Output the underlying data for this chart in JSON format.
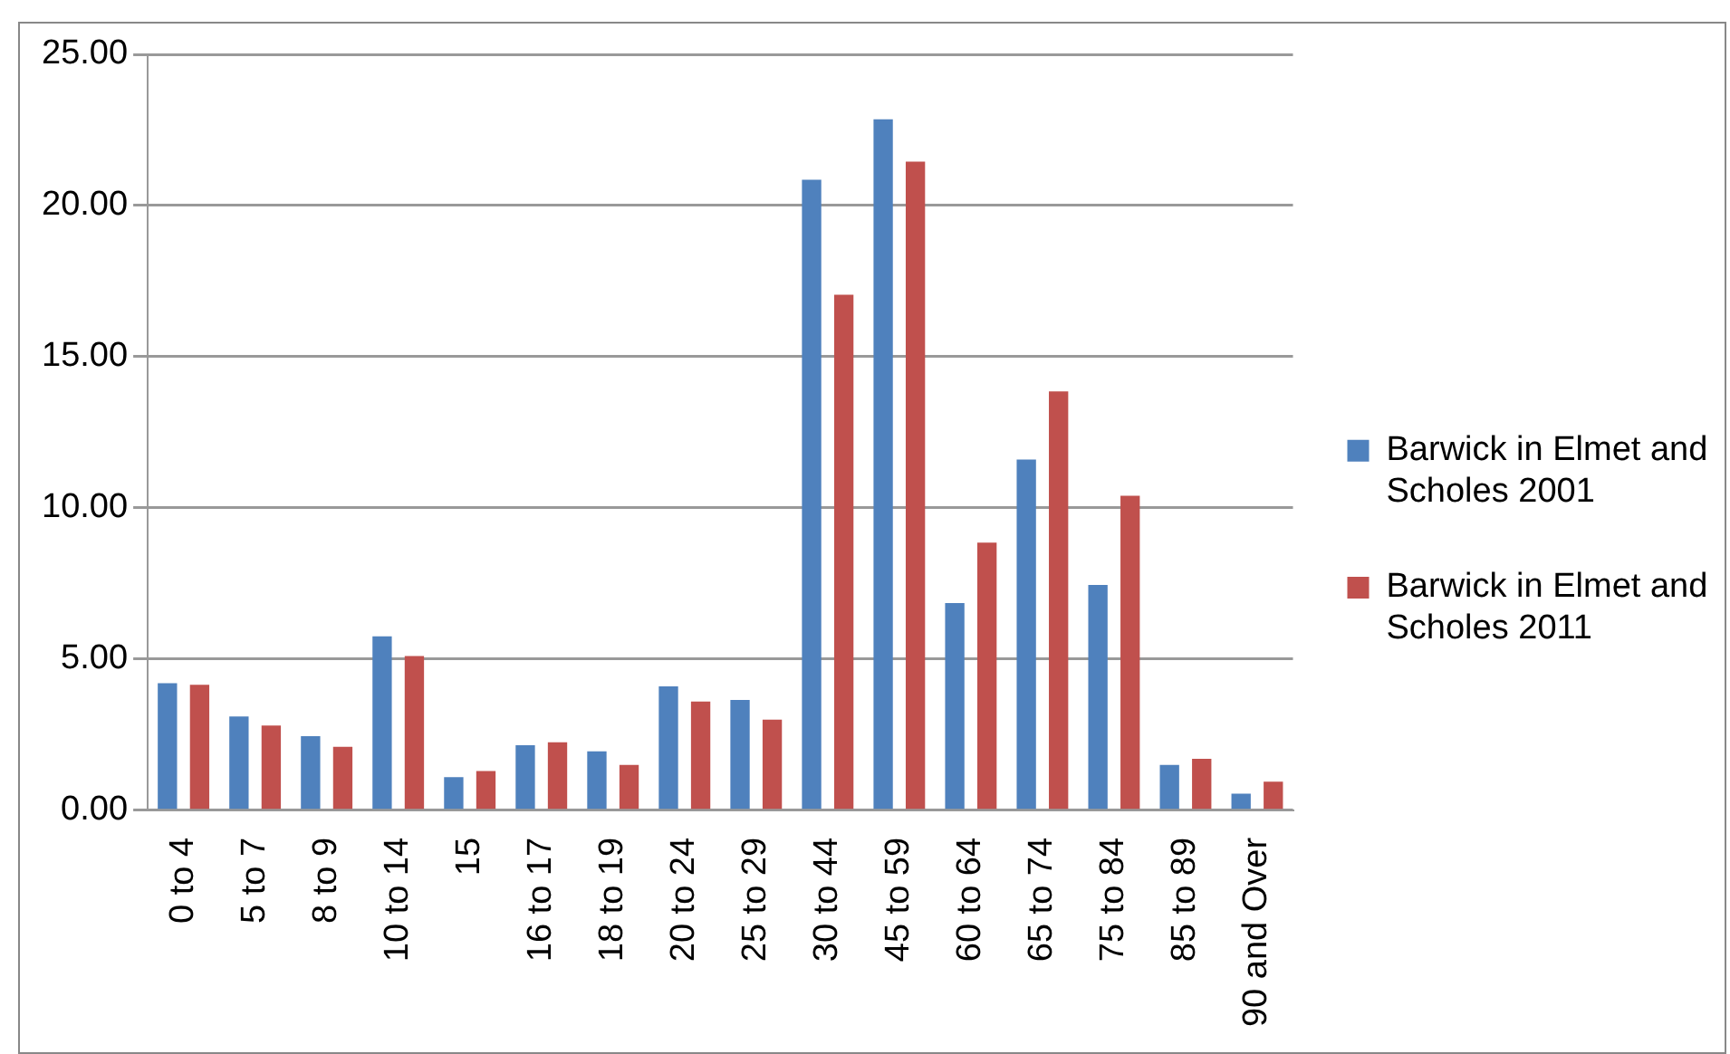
{
  "chart_data": {
    "type": "bar",
    "categories": [
      "0 to 4",
      "5 to 7",
      "8 to 9",
      "10 to 14",
      "15",
      "16 to 17",
      "18 to 19",
      "20 to 24",
      "25 to 29",
      "30 to 44",
      "45 to 59",
      "60 to 64",
      "65 to 74",
      "75 to 84",
      "85 to 89",
      "90 and Over"
    ],
    "series": [
      {
        "name": "Barwick in Elmet and Scholes 2001",
        "color": "#4f81bd",
        "values": [
          4.2,
          3.1,
          2.45,
          5.75,
          1.1,
          2.15,
          1.95,
          4.1,
          3.65,
          20.85,
          22.85,
          6.85,
          11.6,
          7.45,
          1.5,
          0.55
        ]
      },
      {
        "name": "Barwick in Elmet and Scholes 2011",
        "color": "#c0504d",
        "values": [
          4.15,
          2.8,
          2.1,
          5.1,
          1.3,
          2.25,
          1.5,
          3.6,
          3.0,
          17.05,
          21.45,
          8.85,
          13.85,
          10.4,
          1.7,
          0.95
        ]
      }
    ],
    "ylim": [
      0,
      25
    ],
    "yticks": [
      {
        "value": 0,
        "label": "0.00"
      },
      {
        "value": 5,
        "label": "5.00"
      },
      {
        "value": 10,
        "label": "10.00"
      },
      {
        "value": 15,
        "label": "15.00"
      },
      {
        "value": 20,
        "label": "20.00"
      },
      {
        "value": 25,
        "label": "25.00"
      }
    ],
    "grid": "y",
    "legend": "right"
  }
}
